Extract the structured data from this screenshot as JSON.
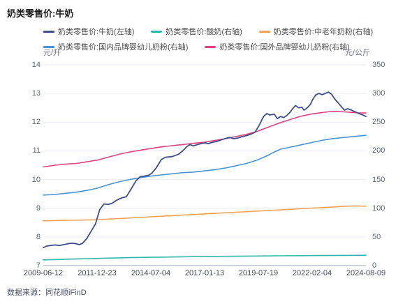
{
  "title": "奶类零售价:牛奶",
  "source": "数据来源：同花顺iFinD",
  "chart_data": {
    "type": "line",
    "title": "奶类零售价:牛奶",
    "grid": "horizontal-only",
    "legend_position": "top",
    "colors": {
      "milk": "#3E4F8C",
      "yogurt": "#2FB8A9",
      "elderly_powder": "#F5A355",
      "domestic_formula": "#4B93D7",
      "foreign_formula": "#E2427F",
      "gridline": "#EAEAF3",
      "axis_line": "#9CA3B2"
    },
    "left_axis": {
      "unit": "元/升",
      "min": 7,
      "max": 14,
      "ticks": [
        14,
        13,
        12,
        11,
        10,
        9,
        8,
        7
      ]
    },
    "right_axis": {
      "unit": "元/公斤",
      "min": 0,
      "max": 350,
      "ticks": [
        350,
        300,
        250,
        200,
        150,
        100,
        50,
        0
      ]
    },
    "x_axis": {
      "labels": [
        "2009-06-12",
        "2011-12-23",
        "2014-07-04",
        "2017-01-13",
        "2019-07-19",
        "2022-02-04",
        "2024-08-09"
      ],
      "start_year": 2009.45,
      "end_year": 2024.61
    },
    "legend_rows": [
      [
        "milk",
        "yogurt",
        "elderly_powder"
      ],
      [
        "domestic_formula",
        "foreign_formula"
      ]
    ],
    "series": [
      {
        "key": "yogurt",
        "name": "奶类零售价:酸奶(右轴)",
        "axis": "right",
        "points": [
          [
            2009.45,
            10
          ],
          [
            2010.5,
            11
          ],
          [
            2011.5,
            12
          ],
          [
            2012.5,
            13
          ],
          [
            2013.5,
            13.8
          ],
          [
            2014.5,
            14.5
          ],
          [
            2015.5,
            15
          ],
          [
            2016.5,
            15.5
          ],
          [
            2017.5,
            16
          ],
          [
            2018.5,
            16.3
          ],
          [
            2019.5,
            16.6
          ],
          [
            2020.5,
            17
          ],
          [
            2021.5,
            17.2
          ],
          [
            2022.5,
            17.5
          ],
          [
            2023.5,
            17.7
          ],
          [
            2024.61,
            18
          ]
        ]
      },
      {
        "key": "elderly_powder",
        "name": "奶类零售价:中老年奶粉(右轴)",
        "axis": "right",
        "points": [
          [
            2009.45,
            78
          ],
          [
            2010.0,
            78.5
          ],
          [
            2010.5,
            79
          ],
          [
            2011.0,
            79
          ],
          [
            2011.5,
            79.5
          ],
          [
            2012.0,
            80
          ],
          [
            2012.5,
            81
          ],
          [
            2013.0,
            82
          ],
          [
            2013.5,
            83
          ],
          [
            2014.0,
            84
          ],
          [
            2014.5,
            85
          ],
          [
            2015.0,
            86
          ],
          [
            2015.5,
            87
          ],
          [
            2016.0,
            88
          ],
          [
            2016.5,
            89
          ],
          [
            2017.0,
            90
          ],
          [
            2017.5,
            91
          ],
          [
            2018.0,
            92
          ],
          [
            2018.5,
            93
          ],
          [
            2019.0,
            94
          ],
          [
            2019.5,
            95
          ],
          [
            2020.0,
            96
          ],
          [
            2020.5,
            97
          ],
          [
            2021.0,
            98
          ],
          [
            2021.5,
            99
          ],
          [
            2022.0,
            100
          ],
          [
            2022.5,
            101
          ],
          [
            2023.0,
            102
          ],
          [
            2023.5,
            103
          ],
          [
            2024.0,
            104
          ],
          [
            2024.61,
            103.5
          ]
        ]
      },
      {
        "key": "domestic_formula",
        "name": "奶类零售价:国内品牌婴幼儿奶粉(右轴)",
        "axis": "right",
        "points": [
          [
            2009.45,
            123
          ],
          [
            2010.0,
            124
          ],
          [
            2010.5,
            126
          ],
          [
            2011.0,
            128
          ],
          [
            2011.5,
            131
          ],
          [
            2012.0,
            135
          ],
          [
            2012.5,
            141
          ],
          [
            2013.0,
            146
          ],
          [
            2013.5,
            150
          ],
          [
            2014.0,
            153
          ],
          [
            2014.5,
            156
          ],
          [
            2015.0,
            158
          ],
          [
            2015.5,
            160
          ],
          [
            2016.0,
            162
          ],
          [
            2016.5,
            163
          ],
          [
            2017.0,
            165
          ],
          [
            2017.5,
            167
          ],
          [
            2018.0,
            170
          ],
          [
            2018.5,
            174
          ],
          [
            2019.0,
            178
          ],
          [
            2019.5,
            184
          ],
          [
            2020.0,
            192
          ],
          [
            2020.3,
            198
          ],
          [
            2020.6,
            203
          ],
          [
            2021.0,
            206
          ],
          [
            2021.5,
            210
          ],
          [
            2022.0,
            214
          ],
          [
            2022.5,
            218
          ],
          [
            2023.0,
            221
          ],
          [
            2023.5,
            223
          ],
          [
            2024.0,
            225
          ],
          [
            2024.61,
            227
          ]
        ]
      },
      {
        "key": "foreign_formula",
        "name": "奶类零售价:国外品牌婴幼儿奶粉(右轴)",
        "axis": "right",
        "points": [
          [
            2009.45,
            172
          ],
          [
            2010.0,
            175
          ],
          [
            2010.5,
            177
          ],
          [
            2011.0,
            178
          ],
          [
            2011.5,
            181
          ],
          [
            2012.0,
            184
          ],
          [
            2012.5,
            189
          ],
          [
            2013.0,
            194
          ],
          [
            2013.5,
            198
          ],
          [
            2014.0,
            201
          ],
          [
            2014.5,
            204
          ],
          [
            2015.0,
            207
          ],
          [
            2015.5,
            209
          ],
          [
            2016.0,
            211
          ],
          [
            2016.5,
            213
          ],
          [
            2017.0,
            215
          ],
          [
            2017.5,
            218
          ],
          [
            2018.0,
            221
          ],
          [
            2018.5,
            225
          ],
          [
            2019.0,
            229
          ],
          [
            2019.5,
            234
          ],
          [
            2020.0,
            241
          ],
          [
            2020.5,
            248
          ],
          [
            2021.0,
            254
          ],
          [
            2021.5,
            260
          ],
          [
            2022.0,
            264
          ],
          [
            2022.4,
            266
          ],
          [
            2022.8,
            268
          ],
          [
            2023.2,
            269
          ],
          [
            2023.6,
            268
          ],
          [
            2024.0,
            267
          ],
          [
            2024.3,
            266
          ],
          [
            2024.61,
            266
          ]
        ]
      },
      {
        "key": "milk",
        "name": "奶类零售价:牛奶(左轴)",
        "axis": "left",
        "points": [
          [
            2009.45,
            7.62
          ],
          [
            2009.6,
            7.68
          ],
          [
            2009.8,
            7.7
          ],
          [
            2010.0,
            7.72
          ],
          [
            2010.2,
            7.7
          ],
          [
            2010.4,
            7.73
          ],
          [
            2010.6,
            7.76
          ],
          [
            2010.8,
            7.78
          ],
          [
            2011.0,
            7.76
          ],
          [
            2011.15,
            7.73
          ],
          [
            2011.3,
            7.78
          ],
          [
            2011.5,
            7.95
          ],
          [
            2011.7,
            8.2
          ],
          [
            2011.9,
            8.45
          ],
          [
            2012.1,
            8.95
          ],
          [
            2012.3,
            9.15
          ],
          [
            2012.5,
            9.13
          ],
          [
            2012.7,
            9.18
          ],
          [
            2012.9,
            9.28
          ],
          [
            2013.1,
            9.35
          ],
          [
            2013.35,
            9.4
          ],
          [
            2013.6,
            9.7
          ],
          [
            2013.8,
            9.95
          ],
          [
            2014.0,
            10.1
          ],
          [
            2014.2,
            10.12
          ],
          [
            2014.4,
            10.15
          ],
          [
            2014.55,
            10.22
          ],
          [
            2014.75,
            10.4
          ],
          [
            2015.0,
            10.7
          ],
          [
            2015.2,
            10.78
          ],
          [
            2015.5,
            10.8
          ],
          [
            2015.8,
            10.88
          ],
          [
            2016.0,
            11.0
          ],
          [
            2016.2,
            11.15
          ],
          [
            2016.35,
            11.22
          ],
          [
            2016.5,
            11.17
          ],
          [
            2016.7,
            11.22
          ],
          [
            2016.9,
            11.26
          ],
          [
            2017.04,
            11.28
          ],
          [
            2017.2,
            11.25
          ],
          [
            2017.4,
            11.3
          ],
          [
            2017.6,
            11.33
          ],
          [
            2017.8,
            11.38
          ],
          [
            2018.0,
            11.43
          ],
          [
            2018.2,
            11.47
          ],
          [
            2018.4,
            11.42
          ],
          [
            2018.6,
            11.45
          ],
          [
            2018.8,
            11.5
          ],
          [
            2019.0,
            11.53
          ],
          [
            2019.2,
            11.58
          ],
          [
            2019.4,
            11.65
          ],
          [
            2019.6,
            11.9
          ],
          [
            2019.8,
            12.2
          ],
          [
            2019.95,
            12.3
          ],
          [
            2020.1,
            12.25
          ],
          [
            2020.3,
            12.28
          ],
          [
            2020.45,
            12.12
          ],
          [
            2020.6,
            12.2
          ],
          [
            2020.75,
            12.16
          ],
          [
            2020.9,
            12.24
          ],
          [
            2021.05,
            12.35
          ],
          [
            2021.2,
            12.5
          ],
          [
            2021.3,
            12.58
          ],
          [
            2021.45,
            12.5
          ],
          [
            2021.6,
            12.52
          ],
          [
            2021.7,
            12.42
          ],
          [
            2021.85,
            12.5
          ],
          [
            2022.0,
            12.62
          ],
          [
            2022.1,
            12.78
          ],
          [
            2022.25,
            12.95
          ],
          [
            2022.4,
            13.0
          ],
          [
            2022.55,
            12.96
          ],
          [
            2022.7,
            13.0
          ],
          [
            2022.85,
            13.05
          ],
          [
            2023.0,
            12.97
          ],
          [
            2023.15,
            12.8
          ],
          [
            2023.3,
            12.68
          ],
          [
            2023.45,
            12.55
          ],
          [
            2023.6,
            12.42
          ],
          [
            2023.75,
            12.47
          ],
          [
            2023.9,
            12.43
          ],
          [
            2024.05,
            12.38
          ],
          [
            2024.2,
            12.33
          ],
          [
            2024.35,
            12.28
          ],
          [
            2024.5,
            12.24
          ],
          [
            2024.61,
            12.2
          ]
        ]
      }
    ]
  }
}
